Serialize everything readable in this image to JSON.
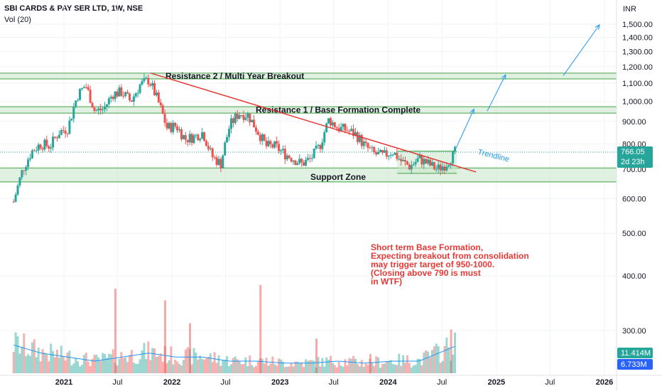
{
  "header": {
    "title": "SBI CARDS & PAY SER LTD, 1W, NSE",
    "volume_label": "Vol (20)",
    "currency": "INR"
  },
  "colors": {
    "up": "#26a69a",
    "down": "#ef5350",
    "zone_fill": "#c8e6c9",
    "zone_line": "#43a047",
    "trendline": "#e53935",
    "arrows": "#2196f3",
    "volume_ma": "#2196f3",
    "price_badge": "#26a69a",
    "volume_badge": "#26a69a",
    "volume_ma_badge": "#2962ff"
  },
  "chart_data": {
    "type": "candlestick",
    "title": "SBI CARDS & PAY SER LTD, 1W, NSE",
    "y_axis": {
      "scale": "log",
      "ticks": [
        300,
        400,
        500,
        600,
        700,
        800,
        900,
        1000,
        1100,
        1200,
        1300,
        1400,
        1500
      ],
      "tick_labels": [
        "300.00",
        "400.00",
        "500.00",
        "600.00",
        "700.00",
        "800.00",
        "900.00",
        "1,000.00",
        "1,100.00",
        "1,200.00",
        "1,300.00",
        "1,400.00",
        "1,500.00"
      ]
    },
    "x_axis": {
      "ticks": [
        {
          "date": "2021-01-01",
          "label": "2021",
          "year": true
        },
        {
          "date": "2021-07-01",
          "label": "Jul",
          "year": false
        },
        {
          "date": "2022-01-01",
          "label": "2022",
          "year": true
        },
        {
          "date": "2022-07-01",
          "label": "Jul",
          "year": false
        },
        {
          "date": "2023-01-01",
          "label": "2023",
          "year": true
        },
        {
          "date": "2023-07-01",
          "label": "Jul",
          "year": false
        },
        {
          "date": "2024-01-01",
          "label": "2024",
          "year": true
        },
        {
          "date": "2024-07-01",
          "label": "Jul",
          "year": false
        },
        {
          "date": "2025-01-01",
          "label": "2025",
          "year": true
        },
        {
          "date": "2025-07-01",
          "label": "Jul",
          "year": false
        },
        {
          "date": "2026-01-01",
          "label": "2026",
          "year": true
        }
      ]
    },
    "price_path": [
      [
        "2020-07-15",
        590
      ],
      [
        "2020-08-15",
        700
      ],
      [
        "2020-09-15",
        770
      ],
      [
        "2020-10-15",
        800
      ],
      [
        "2020-11-15",
        790
      ],
      [
        "2020-12-15",
        850
      ],
      [
        "2021-01-15",
        870
      ],
      [
        "2021-02-15",
        1030
      ],
      [
        "2021-03-15",
        1090
      ],
      [
        "2021-04-15",
        950
      ],
      [
        "2021-05-15",
        960
      ],
      [
        "2021-06-15",
        1040
      ],
      [
        "2021-07-15",
        1050
      ],
      [
        "2021-08-15",
        1000
      ],
      [
        "2021-09-15",
        1090
      ],
      [
        "2021-10-15",
        1120
      ],
      [
        "2021-11-15",
        1000
      ],
      [
        "2021-12-15",
        870
      ],
      [
        "2022-01-15",
        880
      ],
      [
        "2022-02-15",
        820
      ],
      [
        "2022-03-15",
        830
      ],
      [
        "2022-04-15",
        850
      ],
      [
        "2022-05-15",
        750
      ],
      [
        "2022-06-15",
        720
      ],
      [
        "2022-07-15",
        880
      ],
      [
        "2022-08-15",
        940
      ],
      [
        "2022-09-15",
        930
      ],
      [
        "2022-10-15",
        860
      ],
      [
        "2022-11-15",
        790
      ],
      [
        "2022-12-15",
        790
      ],
      [
        "2023-01-15",
        760
      ],
      [
        "2023-02-15",
        740
      ],
      [
        "2023-03-15",
        720
      ],
      [
        "2023-04-15",
        740
      ],
      [
        "2023-05-15",
        790
      ],
      [
        "2023-06-15",
        910
      ],
      [
        "2023-07-15",
        870
      ],
      [
        "2023-08-15",
        860
      ],
      [
        "2023-09-15",
        840
      ],
      [
        "2023-10-15",
        790
      ],
      [
        "2023-11-15",
        760
      ],
      [
        "2023-12-15",
        750
      ],
      [
        "2024-01-15",
        770
      ],
      [
        "2024-02-15",
        730
      ],
      [
        "2024-03-15",
        710
      ],
      [
        "2024-04-15",
        740
      ],
      [
        "2024-05-15",
        720
      ],
      [
        "2024-06-15",
        700
      ],
      [
        "2024-07-15",
        720
      ],
      [
        "2024-08-15",
        766
      ]
    ],
    "volume_scale_max": 25,
    "volume_path": [
      [
        "2020-07-15",
        7
      ],
      [
        "2020-10-15",
        5
      ],
      [
        "2021-01-15",
        4
      ],
      [
        "2021-04-15",
        3
      ],
      [
        "2021-07-15",
        4
      ],
      [
        "2021-10-15",
        5
      ],
      [
        "2022-01-15",
        4
      ],
      [
        "2022-04-15",
        4
      ],
      [
        "2022-07-15",
        3
      ],
      [
        "2022-10-15",
        3
      ],
      [
        "2023-01-15",
        2.5
      ],
      [
        "2023-04-15",
        2.5
      ],
      [
        "2023-07-15",
        3
      ],
      [
        "2023-10-15",
        2.5
      ],
      [
        "2024-01-15",
        3
      ],
      [
        "2024-04-15",
        3
      ],
      [
        "2024-08-15",
        6.7
      ]
    ],
    "volume_spikes": [
      [
        "2021-06-24",
        22
      ],
      [
        "2021-12-09",
        19
      ],
      [
        "2022-03-03",
        13
      ],
      [
        "2022-10-27",
        23
      ],
      [
        "2023-05-04",
        9
      ],
      [
        "2023-11-02",
        5
      ],
      [
        "2024-08-01",
        11.4
      ]
    ],
    "zones": [
      {
        "name": "resistance-2",
        "label": "Resistance 2 / Multi Year Breakout",
        "low": 1125,
        "high": 1160
      },
      {
        "name": "resistance-1",
        "label": "Resistance 1 / Base Formation Complete",
        "low": 940,
        "high": 972
      },
      {
        "name": "support",
        "label": "Support Zone",
        "low": 655,
        "high": 705
      },
      {
        "name": "consolidation",
        "label": "",
        "low": 685,
        "high": 770,
        "start": "2024-02-01",
        "end": "2024-08-20"
      }
    ],
    "trendline": {
      "label": "Trendline",
      "from": [
        "2021-10-21",
        1160
      ],
      "to": [
        "2024-10-24",
        690
      ]
    },
    "arrows": [
      {
        "from": [
          "2024-08-15",
          775
        ],
        "to": [
          "2024-10-17",
          960
        ]
      },
      {
        "from": [
          "2024-12-01",
          950
        ],
        "to": [
          "2025-02-01",
          1150
        ]
      },
      {
        "from": [
          "2025-08-15",
          1145
        ],
        "to": [
          "2025-12-15",
          1495
        ]
      }
    ],
    "current_price": {
      "value": 766.05,
      "label": "766.05",
      "countdown": "2d 23h"
    },
    "volume_badges": {
      "volume": "11.414M",
      "volume_ma": "6.733M"
    },
    "annotation": [
      "Short term Base Formation,",
      "Expecting breakout from consolidation",
      "may trigger target of 950-1000.",
      "(Closing above 790 is must",
      "in WTF)"
    ]
  }
}
